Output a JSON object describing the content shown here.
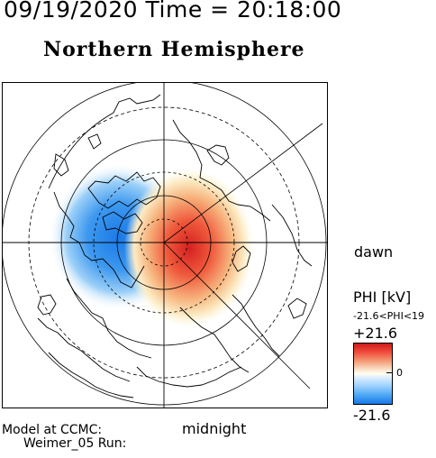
{
  "header": {
    "timestamp": "09/19/2020 Time = 20:18:00",
    "hemisphere": "Northern Hemisphere"
  },
  "map": {
    "dawn_label": "dawn",
    "midnight_label": "midnight",
    "projection": "polar, geographic coastlines",
    "potential_pattern": {
      "dusk_cell_sign": "negative",
      "dawn_cell_sign": "positive"
    }
  },
  "colorbar": {
    "title": "PHI [kV]",
    "range_text": "-21.6<PHI<19",
    "max_label": "+21.6",
    "zero_label": "0",
    "min_label": "-21.6",
    "colors": {
      "max": "#cc1a1a",
      "mid": "#ffffee",
      "min": "#1a78e8"
    }
  },
  "footer": {
    "line1": "Model at CCMC:",
    "line2": "Weimer_05 Run:"
  }
}
